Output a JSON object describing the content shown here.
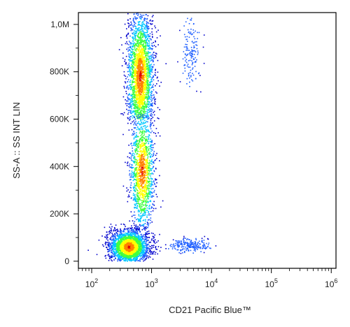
{
  "chart_data": {
    "type": "scatter",
    "xlabel": "CD21 Pacific Blue™",
    "ylabel": "SS-A :: SS INT LIN",
    "x_scale": "log",
    "xlim": [
      60,
      1200000
    ],
    "ylim": [
      -30000,
      1050000
    ],
    "x_ticks": [
      {
        "value": 100,
        "base": "10",
        "exp": "2"
      },
      {
        "value": 1000,
        "base": "10",
        "exp": "3"
      },
      {
        "value": 10000,
        "base": "10",
        "exp": "4"
      },
      {
        "value": 100000,
        "base": "10",
        "exp": "5"
      },
      {
        "value": 1000000,
        "base": "10",
        "exp": "6"
      }
    ],
    "y_ticks": [
      {
        "value": 0,
        "label": "0"
      },
      {
        "value": 200000,
        "label": "200K"
      },
      {
        "value": 400000,
        "label": "400K"
      },
      {
        "value": 600000,
        "label": "600K"
      },
      {
        "value": 800000,
        "label": "800K"
      },
      {
        "value": 1000000,
        "label": "1,0M"
      }
    ],
    "grid": false,
    "colormap": [
      "#0000cc",
      "#1f5fff",
      "#00c8ff",
      "#40ff40",
      "#ffff00",
      "#ff8000",
      "#e00000"
    ],
    "populations": [
      {
        "x_center": 650,
        "x_spread_decades": 0.11,
        "y_center": 780000,
        "y_spread": 140000,
        "y_min": 600000,
        "y_max": 1050000,
        "events": 2600
      },
      {
        "x_center": 700,
        "x_spread_decades": 0.1,
        "y_center": 380000,
        "y_spread": 130000,
        "y_min": 120000,
        "y_max": 620000,
        "events": 1500
      },
      {
        "x_center": 420,
        "x_spread_decades": 0.16,
        "y_center": 60000,
        "y_spread": 35000,
        "y_min": 0,
        "y_max": 170000,
        "events": 2500
      },
      {
        "x_center": 4200,
        "x_spread_decades": 0.18,
        "y_center": 65000,
        "y_spread": 15000,
        "y_min": 30000,
        "y_max": 110000,
        "events": 220
      },
      {
        "x_center": 4500,
        "x_spread_decades": 0.08,
        "y_center": 880000,
        "y_spread": 80000,
        "y_min": 700000,
        "y_max": 1040000,
        "events": 160
      }
    ]
  }
}
